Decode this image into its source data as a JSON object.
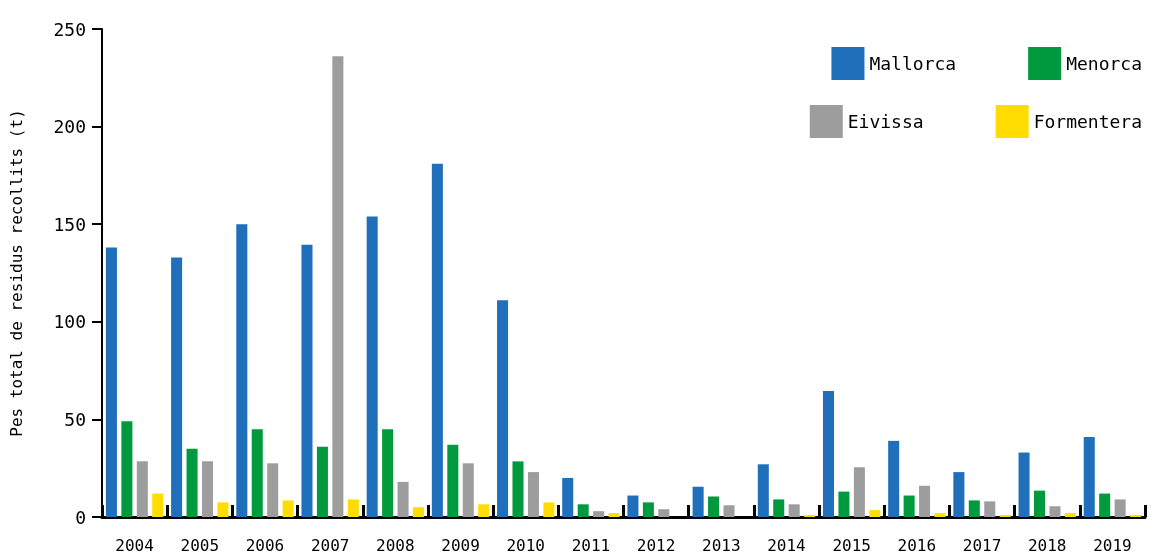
{
  "chart_data": {
    "type": "bar",
    "ylabel": "Pes total de residus recollits (t)",
    "categories": [
      "2004",
      "2005",
      "2006",
      "2007",
      "2008",
      "2009",
      "2010",
      "2011",
      "2012",
      "2013",
      "2014",
      "2015",
      "2016",
      "2017",
      "2018",
      "2019"
    ],
    "series": [
      {
        "name": "Mallorca",
        "color": "#1f6fba",
        "values": [
          138,
          133,
          150,
          139.5,
          154,
          181,
          111,
          20,
          11,
          15.5,
          27,
          64.5,
          39,
          23,
          33,
          41
        ]
      },
      {
        "name": "Menorca",
        "color": "#009a3e",
        "values": [
          49,
          35,
          45,
          36,
          45,
          37,
          28.5,
          6.5,
          7.5,
          10.5,
          9,
          13,
          11,
          8.5,
          13.5,
          12
        ]
      },
      {
        "name": "Eivissa",
        "color": "#9d9d9d",
        "values": [
          28.5,
          28.5,
          27.5,
          236,
          18,
          27.5,
          23,
          3,
          4,
          6,
          6.5,
          25.5,
          16,
          8,
          5.5,
          9
        ]
      },
      {
        "name": "Formentera",
        "color": "#ffdd00",
        "values": [
          12,
          7.5,
          8.5,
          9,
          5,
          6.5,
          7.5,
          2,
          0,
          0,
          1,
          3.5,
          2,
          1,
          2,
          1
        ]
      }
    ],
    "ylim": [
      0,
      250
    ],
    "yticks": [
      0,
      50,
      100,
      150,
      200,
      250
    ],
    "grid": false,
    "legend": "top right"
  }
}
